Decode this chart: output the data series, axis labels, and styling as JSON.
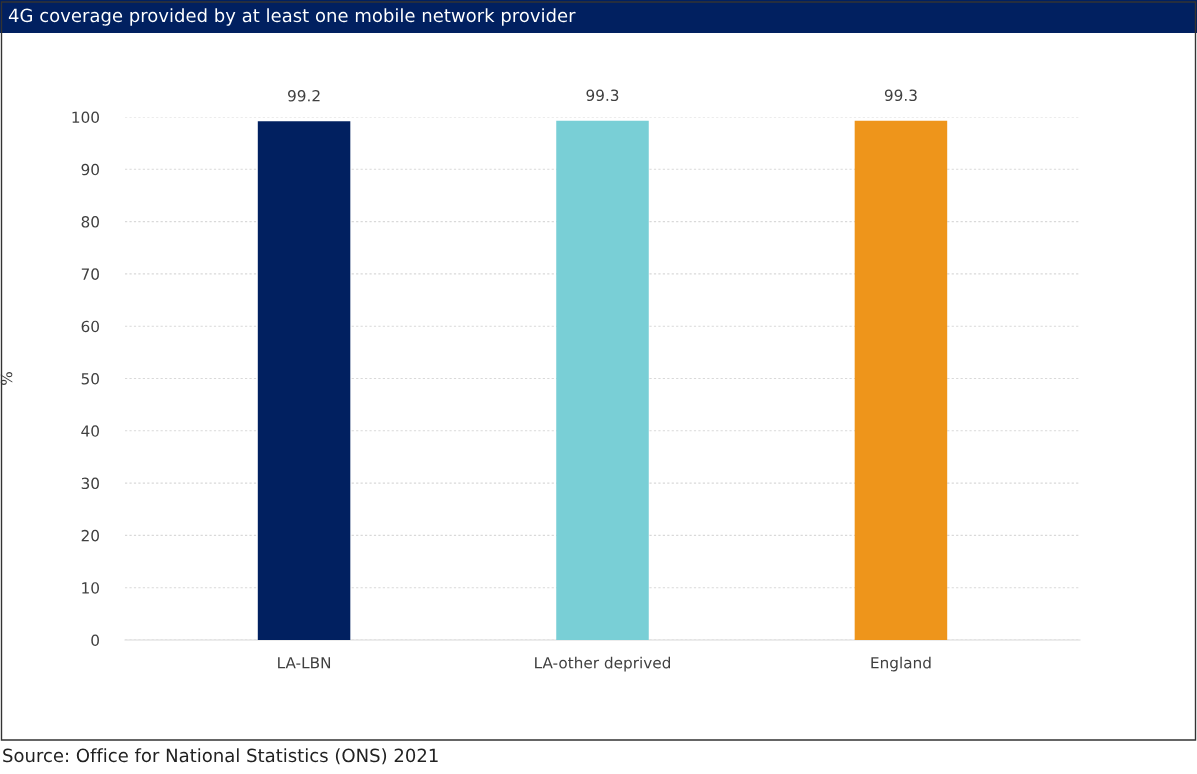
{
  "chart_data": {
    "type": "bar",
    "title": "4G coverage provided by at least one mobile network provider",
    "categories": [
      "LA-LBN",
      "LA-other deprived",
      "England"
    ],
    "values": [
      99.2,
      99.3,
      99.3
    ],
    "colors": [
      "#012060",
      "#79cfd6",
      "#ee951b"
    ],
    "ylabel": "%",
    "ylim": [
      0,
      100
    ],
    "yticks": [
      0,
      10,
      20,
      30,
      40,
      50,
      60,
      70,
      80,
      90,
      100
    ],
    "grid": "y",
    "data_labels": true,
    "annotations": [
      "Source: Office for National Statistics (ONS) 2021"
    ]
  }
}
